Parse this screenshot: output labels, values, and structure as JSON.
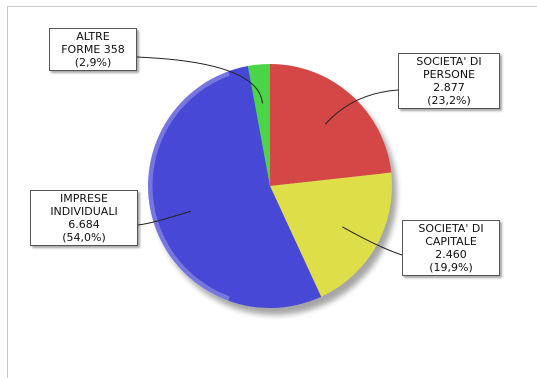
{
  "chart_data": {
    "type": "pie",
    "slices": [
      {
        "name": "SOCIETA' DI PERSONE",
        "value": 2877,
        "percent": 23.2,
        "color": "#d54646",
        "label_lines": [
          "SOCIETA' DI",
          "PERSONE",
          "2.877",
          "(23,2%)"
        ]
      },
      {
        "name": "SOCIETA' DI CAPITALE",
        "value": 2460,
        "percent": 19.9,
        "color": "#dede48",
        "label_lines": [
          "SOCIETA' DI",
          "CAPITALE",
          "2.460",
          "(19,9%)"
        ]
      },
      {
        "name": "IMPRESE INDIVIDUALI",
        "value": 6684,
        "percent": 54.0,
        "color": "#4848d6",
        "label_lines": [
          "IMPRESE",
          "INDIVIDUALI",
          "6.684",
          "(54,0%)"
        ]
      },
      {
        "name": "ALTRE FORME",
        "value": 358,
        "percent": 2.9,
        "color": "#48d648",
        "label_lines": [
          "ALTRE",
          "FORME 358",
          "(2,9%)"
        ]
      }
    ]
  }
}
